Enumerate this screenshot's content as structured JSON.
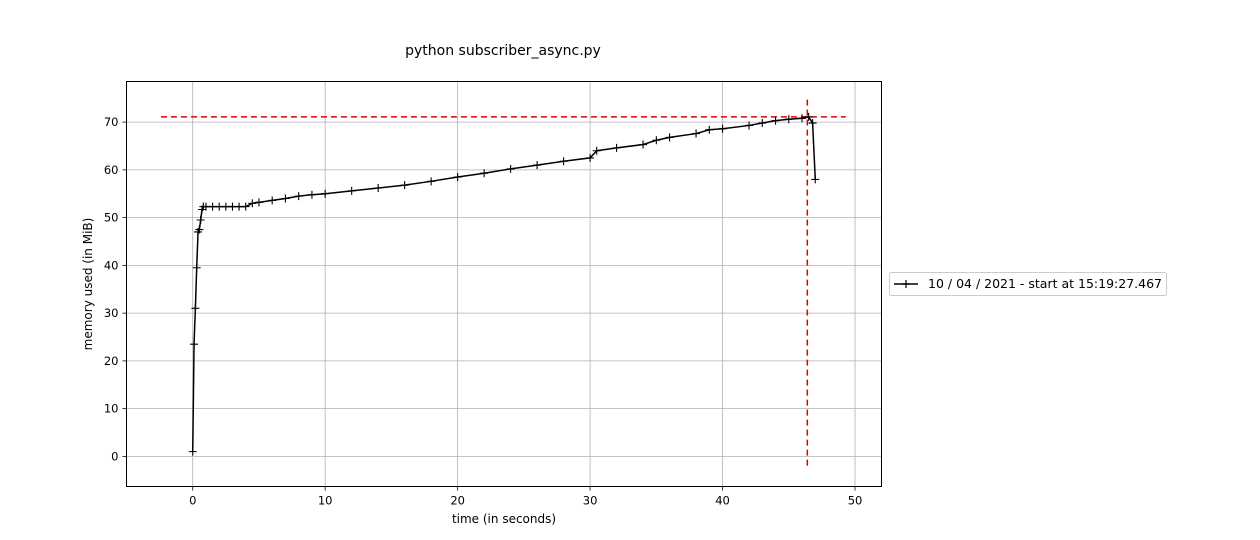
{
  "chart_data": {
    "type": "line",
    "title": "python subscriber_async.py",
    "xlabel": "time (in seconds)",
    "ylabel": "memory used (in MiB)",
    "xlim": [
      -5,
      52
    ],
    "ylim": [
      -6.3,
      78.5
    ],
    "xticks": [
      0,
      10,
      20,
      30,
      40,
      50
    ],
    "yticks": [
      0,
      10,
      20,
      30,
      40,
      50,
      60,
      70
    ],
    "grid": true,
    "legend_position": "center-right, outside axes",
    "series": [
      {
        "name": "10 / 04 / 2021 - start at 15:19:27.467",
        "color": "#000000",
        "marker": "+",
        "x": [
          0.0,
          0.1,
          0.2,
          0.3,
          0.4,
          0.5,
          0.6,
          0.7,
          0.8,
          1.0,
          1.5,
          2.0,
          2.5,
          3.0,
          3.5,
          4.0,
          4.5,
          5.0,
          6.0,
          7.0,
          8.0,
          9.0,
          10.0,
          12.0,
          14.0,
          16.0,
          18.0,
          20.0,
          22.0,
          24.0,
          26.0,
          28.0,
          30.0,
          30.5,
          32.0,
          34.0,
          35.0,
          36.0,
          38.0,
          39.0,
          40.0,
          42.0,
          43.0,
          44.0,
          45.0,
          46.0,
          46.5,
          46.8,
          47.0
        ],
        "y": [
          1.0,
          23.5,
          31.0,
          39.5,
          47.0,
          47.5,
          49.5,
          51.7,
          52.3,
          52.3,
          52.3,
          52.3,
          52.3,
          52.3,
          52.3,
          52.3,
          53.0,
          53.2,
          53.6,
          54.0,
          54.5,
          54.8,
          55.0,
          55.6,
          56.2,
          56.8,
          57.6,
          58.5,
          59.3,
          60.2,
          61.0,
          61.8,
          62.5,
          64.0,
          64.6,
          65.3,
          66.2,
          66.8,
          67.6,
          68.4,
          68.6,
          69.3,
          69.8,
          70.3,
          70.6,
          70.8,
          71.1,
          69.8,
          58.0
        ]
      }
    ],
    "reference_lines": {
      "color": "#dd0000",
      "style": "dashed",
      "peak_memory_y": 71.1,
      "peak_time_x": 46.4
    }
  }
}
